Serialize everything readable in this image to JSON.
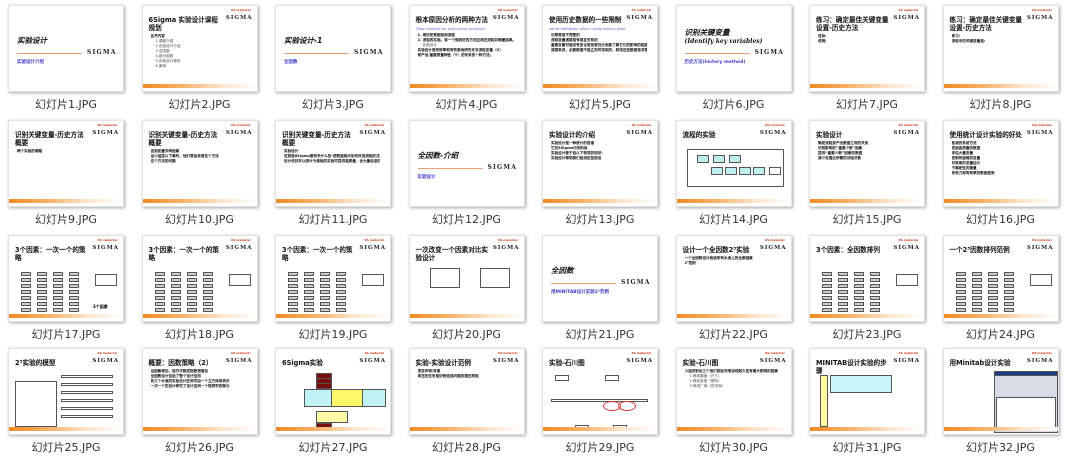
{
  "brand": {
    "logo": "SIGMA",
    "tag": "6S material"
  },
  "colors": {
    "accent": "#f08a24",
    "subtitle": "#4040d0",
    "logo_tag": "#d23a12"
  },
  "slides": [
    {
      "label": "幻灯片1.JPG",
      "kind": "title",
      "title": "实验设计",
      "subtitle": "实验设计介绍"
    },
    {
      "label": "幻灯片2.JPG",
      "kind": "content",
      "title": "6Sigma 实验设计课程规划",
      "bullets": [
        {
          "t": "各节内容"
        },
        {
          "t": "1.课程介绍",
          "s": 1
        },
        {
          "t": "2.实验设计介绍",
          "s": 1
        },
        {
          "t": "3.全因数",
          "s": 1
        },
        {
          "t": "4.部分因数",
          "s": 1
        },
        {
          "t": "5.实验设计规划",
          "s": 1
        },
        {
          "t": "6.案例",
          "s": 1
        }
      ]
    },
    {
      "label": "幻灯片3.JPG",
      "kind": "title",
      "title": "实验设计-1",
      "subtitle": "全因数"
    },
    {
      "label": "幻灯片4.JPG",
      "kind": "content",
      "title": "根本原因分析的两种方法",
      "subtitle": "(Two method for root cause analysis)",
      "bullets": [
        {
          "t": "1. 用历史数据检测流程"
        },
        {
          "t": "2. 流程的实验。将一个规划好的方法应用在流程并衡量结果。"
        },
        {
          "t": "实验设计",
          "s": 1
        },
        {
          "t": "实验设计是有效率和有效果地研究许多流程变量（X）"
        },
        {
          "t": "和产出/重要质量特性（Y）的关系的一种方法。"
        }
      ]
    },
    {
      "label": "幻灯片5.JPG",
      "kind": "content",
      "title": "使用历史数据的一些限制",
      "subtitle": "some limitation when using history data",
      "bullets": [
        {
          "t": "记录常是不完整的"
        },
        {
          "t": "流程变量通常是有相互关系的"
        },
        {
          "t": "重要变量可能没有变化而足够充分到能了解它们的影响的程度"
        },
        {
          "t": "通常来说，必要数据不是立刻可得到的，获得这些数据是非常必要的。"
        }
      ]
    },
    {
      "label": "幻灯片6.JPG",
      "kind": "title",
      "title": "识别关键变量",
      "title2": "(Identify key variables)",
      "subtitle": "历史方法(history method)"
    },
    {
      "label": "幻灯片7.JPG",
      "kind": "content",
      "title": "练习：确定最佳关键变量设置-历史方法",
      "bullets": [
        {
          "t": "目标:"
        },
        {
          "t": "说明:"
        }
      ]
    },
    {
      "label": "幻灯片8.JPG",
      "kind": "content",
      "title": "练习：确定最佳关键变量设置-历史方法",
      "bullets": [
        {
          "t": "练习:"
        },
        {
          "t": "流程中的关键变量是:"
        }
      ]
    },
    {
      "label": "幻灯片9.JPG",
      "kind": "content",
      "title": "识别关键变量-历史方法概要",
      "bullets": [
        {
          "t": "两个实验的难题"
        }
      ]
    },
    {
      "label": "幻灯片10.JPG",
      "kind": "content",
      "title": "识别关键变量-历史方法概要",
      "bullets": [
        {
          "t": "回到变量多种因素"
        },
        {
          "t": "当小组提以下事时，他们常会采用这个方法"
        },
        {
          "t": "这个方法的问题"
        }
      ]
    },
    {
      "label": "幻灯片11.JPG",
      "kind": "content",
      "title": "识别关键变量-历史方法概要",
      "bullets": [
        {
          "t": "实验设计"
        },
        {
          "t": "这就是6Sigma要有关什么的-使数据展示如何改进流程的决定"
        },
        {
          "t": "设计良好并以统计为基础的实验可提供高质量、含大量信息的数据"
        }
      ]
    },
    {
      "label": "幻灯片12.JPG",
      "kind": "title",
      "title": "全因数-介绍",
      "subtitle": "实验设计"
    },
    {
      "label": "幻灯片13.JPG",
      "kind": "content",
      "title": "实验设计的介绍",
      "bullets": [
        {
          "t": "实验设计是一种统计的思维"
        },
        {
          "t": "它在6Sigma中的阶段"
        },
        {
          "t": "实验设计基于自以下获得的知识:"
        },
        {
          "t": "实验设计帮助我们检测这些假设"
        }
      ]
    },
    {
      "label": "幻灯片14.JPG",
      "kind": "content",
      "title": "流程的实验",
      "diagram": "flow"
    },
    {
      "label": "幻灯片15.JPG",
      "kind": "content",
      "title": "实验设计",
      "bullets": [
        {
          "t": "确定流程投产出数据之间的关系"
        },
        {
          "t": "识别影响的“重要少数”因素"
        },
        {
          "t": "提供“重要少数”因素的数据"
        },
        {
          "t": "减少处理比所需的试验次数"
        }
      ]
    },
    {
      "label": "幻灯片16.JPG",
      "kind": "content",
      "title": "使用统计设计实验的好处",
      "bullets": [
        {
          "t": "检测的系统方法"
        },
        {
          "t": "发展高质量的数据"
        },
        {
          "t": "评估大量变量"
        },
        {
          "t": "控制有困难的变量"
        },
        {
          "t": "对效果的变量估计"
        },
        {
          "t": "不确定性的衡量"
        },
        {
          "t": "有效力和有效率的数据使用"
        }
      ]
    },
    {
      "label": "幻灯片17.JPG",
      "kind": "content",
      "title": "3个因素：一次一个的策略",
      "diagram": "table",
      "note": "3个因素"
    },
    {
      "label": "幻灯片18.JPG",
      "kind": "content",
      "title": "3个因素：一次一个的策略",
      "diagram": "table"
    },
    {
      "label": "幻灯片19.JPG",
      "kind": "content",
      "title": "3个因素：一次一个的策略",
      "diagram": "table"
    },
    {
      "label": "幻灯片20.JPG",
      "kind": "content",
      "title": "一次改变一个因素对比实验设计",
      "diagram": "cube"
    },
    {
      "label": "幻灯片21.JPG",
      "kind": "title",
      "title": "全因数",
      "subtitle": "用MINITAB设计实验2³范例"
    },
    {
      "label": "幻灯片22.JPG",
      "kind": "content",
      "title": "设计一个全因数2³实验",
      "bullets": [
        {
          "t": "一个全因数设计检验所有水准上的全部因素"
        },
        {
          "t": "2³范例"
        }
      ]
    },
    {
      "label": "幻灯片23.JPG",
      "kind": "content",
      "title": "3个因素：全因数排列",
      "diagram": "table"
    },
    {
      "label": "幻灯片24.JPG",
      "kind": "content",
      "title": "一个2³因数排列范例",
      "diagram": "table"
    },
    {
      "label": "幻灯片25.JPG",
      "kind": "content",
      "title": "2³实验的模型",
      "diagram": "model"
    },
    {
      "label": "幻灯片26.JPG",
      "kind": "content",
      "title": "概要：因数策略（2）",
      "bullets": [
        {
          "t": "当因素增加，运行次数成指数倍增加"
        },
        {
          "t": "全因数设计包括了整个设计空间"
        },
        {
          "t": "有三个水准的实验设计空间可由一个立方体来表示"
        },
        {
          "t": "一次一个的设计研究了设计空间一个很狭窄的部分"
        }
      ]
    },
    {
      "label": "幻灯片27.JPG",
      "kind": "content",
      "title": "6Sigma实验",
      "diagram": "stack"
    },
    {
      "label": "幻灯片28.JPG",
      "kind": "content",
      "title": "实验-实验设计范例",
      "bullets": [
        {
          "t": "项目声明/背景"
        },
        {
          "t": "现在的任务是识别造成问题的潜在原因"
        }
      ]
    },
    {
      "label": "幻灯片29.JPG",
      "kind": "content",
      "title": "实验-石川图",
      "diagram": "fishbone"
    },
    {
      "label": "幻灯片30.JPG",
      "kind": "content",
      "title": "实验-石川图",
      "bullets": [
        {
          "t": "小组识别出三个他们相信对喷涂线耐久性有最大影响的因素"
        },
        {
          "t": "1.喷线展度（尺寸）",
          "s": 1
        },
        {
          "t": "2.喷线类型（塑料）",
          "s": 1
        },
        {
          "t": "3.喷线厂商（供货商）",
          "s": 1
        }
      ]
    },
    {
      "label": "幻灯片31.JPG",
      "kind": "content",
      "title": "MINITAB设计实验的步骤",
      "diagram": "steps"
    },
    {
      "label": "幻灯片32.JPG",
      "kind": "content",
      "title": "用Minitab设计实验",
      "diagram": "screen"
    }
  ]
}
